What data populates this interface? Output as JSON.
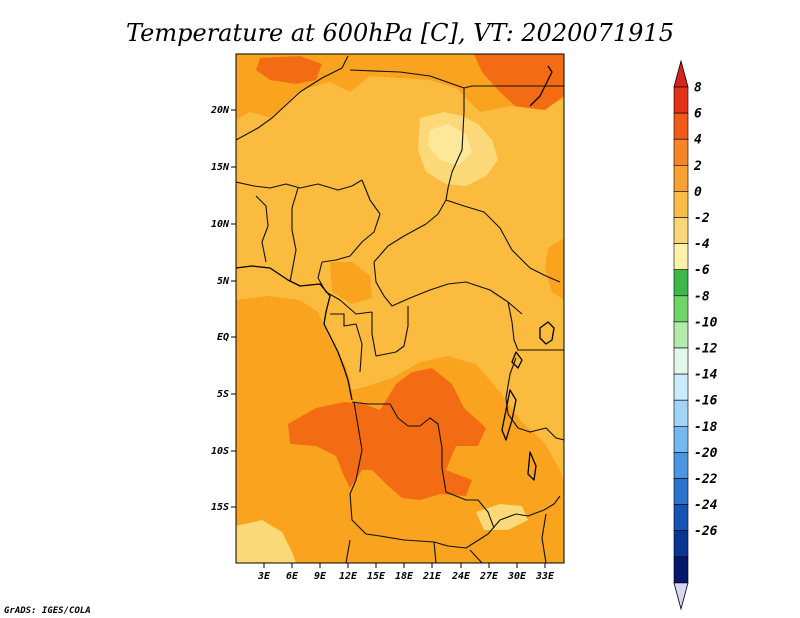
{
  "title": "Temperature at 600hPa [C], VT: 2020071915",
  "credit": "GrADS: IGES/COLA",
  "map": {
    "lat_ticks": [
      "20N",
      "15N",
      "10N",
      "5N",
      "EQ",
      "5S",
      "10S",
      "15S"
    ],
    "lon_ticks": [
      "3E",
      "6E",
      "9E",
      "12E",
      "15E",
      "18E",
      "21E",
      "24E",
      "27E",
      "30E",
      "33E"
    ],
    "colors": {
      "field_base": "#fbbb3f",
      "field_warm": "#f9a31e",
      "field_hot": "#f36c13",
      "field_cool": "#fcd978",
      "field_coolest": "#fde89a"
    }
  },
  "colorbar": {
    "labels": [
      "8",
      "6",
      "4",
      "2",
      "0",
      "-2",
      "-4",
      "-6",
      "-8",
      "-10",
      "-12",
      "-14",
      "-16",
      "-18",
      "-20",
      "-22",
      "-24",
      "-26"
    ],
    "colors": [
      "#e43015",
      "#f25a18",
      "#f88425",
      "#faa031",
      "#fbbd48",
      "#fdd777",
      "#fdf0a8",
      "#3bb84a",
      "#6fd56a",
      "#b3ecaa",
      "#e3f8ec",
      "#c9ecfb",
      "#a2d4f6",
      "#74b8ef",
      "#4a96e3",
      "#2a74d1",
      "#1553b8",
      "#0a3595",
      "#061770"
    ],
    "top_color": "#d8221d",
    "bottom_color": "#d9d6f4"
  }
}
